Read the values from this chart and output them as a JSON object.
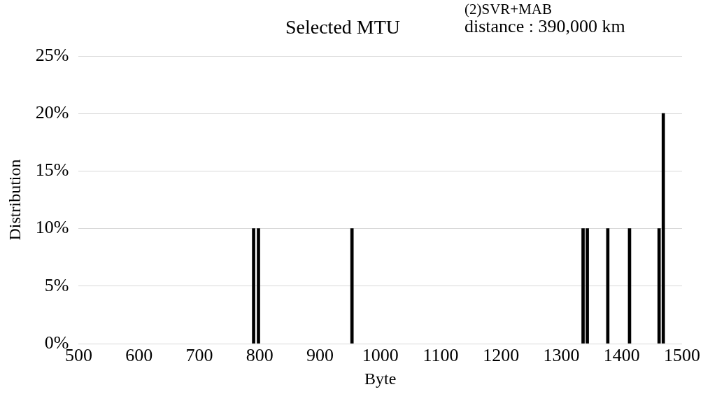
{
  "chart_data": {
    "type": "bar",
    "title": "Selected MTU",
    "xlabel": "Byte",
    "ylabel": "Distribution",
    "annotations": [
      "(2)SVR+MAB",
      "distance : 390,000 km"
    ],
    "x": [
      790,
      798,
      953,
      1336,
      1343,
      1377,
      1413,
      1462,
      1469
    ],
    "values": [
      10,
      10,
      10,
      10,
      10,
      10,
      10,
      10,
      20
    ],
    "color": "#000000",
    "xlim": [
      500,
      1500
    ],
    "xticks": [
      500,
      600,
      700,
      800,
      900,
      1000,
      1100,
      1200,
      1300,
      1400,
      1500
    ],
    "ylim": [
      0,
      25
    ],
    "yticks": [
      {
        "value": 0,
        "label": "0%"
      },
      {
        "value": 5,
        "label": "5%"
      },
      {
        "value": 10,
        "label": "10%"
      },
      {
        "value": 15,
        "label": "15%"
      },
      {
        "value": 20,
        "label": "20%"
      },
      {
        "value": 25,
        "label": "25%"
      }
    ],
    "grid": "y",
    "legend": false
  }
}
